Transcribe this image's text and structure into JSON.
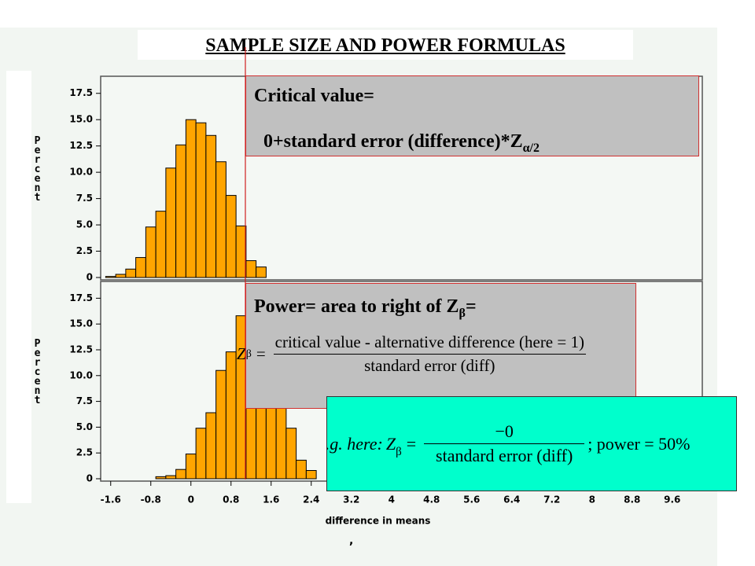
{
  "title": "SAMPLE SIZE AND POWER FORMULAS",
  "chart_data": [
    {
      "type": "histogram",
      "ylabel": "Percent",
      "color": "#ffa500",
      "bins": [
        -1.7,
        -1.5,
        -1.3,
        -1.1,
        -0.9,
        -0.7,
        -0.5,
        -0.3,
        -0.1,
        0.1,
        0.3,
        0.5,
        0.7,
        0.9,
        1.1,
        1.3,
        1.5
      ],
      "values": [
        0.1,
        0.3,
        0.8,
        1.9,
        4.8,
        6.3,
        10.4,
        12.6,
        15.0,
        14.7,
        13.5,
        11.0,
        7.8,
        4.9,
        1.6,
        1.0
      ],
      "xlim": [
        -1.8,
        10.2
      ],
      "ylim": [
        0,
        18.9
      ],
      "yticks": [
        0,
        2.5,
        {
          "value": 5,
          "label": "5.0"
        },
        7.5,
        {
          "value": 10,
          "label": "10.0"
        },
        12.5,
        {
          "value": 15,
          "label": "15.0"
        },
        17.5
      ]
    },
    {
      "type": "histogram",
      "ylabel": "Percent",
      "xlabel": "difference in means",
      "color": "#ffa500",
      "bins": [
        -0.7,
        -0.5,
        -0.3,
        -0.1,
        0.1,
        0.3,
        0.5,
        0.7,
        0.9,
        1.1,
        1.3,
        1.5,
        1.7,
        1.9,
        2.1,
        2.3,
        2.5
      ],
      "values": [
        0.2,
        0.3,
        0.9,
        2.4,
        4.9,
        6.4,
        10.5,
        12.3,
        15.8,
        15.0,
        13.6,
        11.2,
        7.6,
        4.9,
        1.8,
        0.8
      ],
      "xlim": [
        -1.8,
        10.2
      ],
      "ylim": [
        0,
        18.9
      ],
      "xticks": [
        -1.6,
        -0.8,
        0,
        0.8,
        1.6,
        2.4,
        3.2,
        4,
        4.8,
        5.6,
        6.4,
        7.2,
        8,
        8.8,
        9.6
      ],
      "yticks": [
        0,
        2.5,
        {
          "value": 5,
          "label": "5.0"
        },
        7.5,
        {
          "value": 10,
          "label": "10.0"
        },
        12.5,
        {
          "value": 15,
          "label": "15.0"
        },
        17.5
      ]
    }
  ],
  "critical_box": {
    "line1": "Critical value=",
    "line2": "0+standard error (difference)*Z",
    "line2_sub": "α/2"
  },
  "power_box": {
    "line1": "Power= area to right of Z",
    "line1_sub": "β",
    "line1_end": "=",
    "formula": {
      "lhs": "Z",
      "lhs_sub": "β",
      "eq": "=",
      "numerator": "critical value - alternative difference (here = 1)",
      "denominator": "standard error (diff)"
    }
  },
  "example_box": {
    "prefix": "e.g. here:",
    "lhs": "Z",
    "lhs_sub": "β",
    "eq": "=",
    "numerator": "−0",
    "denominator": "standard error (diff)",
    "suffix": "; power = 50%"
  },
  "footnote": ","
}
